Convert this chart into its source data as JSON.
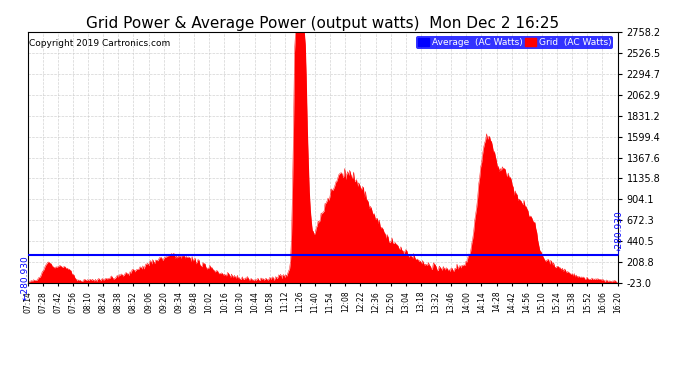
{
  "title": "Grid Power & Average Power (output watts)  Mon Dec 2 16:25",
  "copyright": "Copyright 2019 Cartronics.com",
  "legend_avg": "Average  (AC Watts)",
  "legend_grid": "Grid  (AC Watts)",
  "avg_line_value": 280.93,
  "avg_label": "280.930",
  "ymin": -23.0,
  "ymax": 2758.2,
  "yticks": [
    2758.2,
    2526.5,
    2294.7,
    2062.9,
    1831.2,
    1599.4,
    1367.6,
    1135.8,
    904.1,
    672.3,
    440.5,
    208.8,
    -23.0
  ],
  "background_color": "#ffffff",
  "grid_color": "#c8c8c8",
  "fill_color": "#ff0000",
  "line_color": "#0000ff",
  "title_fontsize": 11,
  "xtick_labels": [
    "07:14",
    "07:28",
    "07:42",
    "07:56",
    "08:10",
    "08:24",
    "08:38",
    "08:52",
    "09:06",
    "09:20",
    "09:34",
    "09:48",
    "10:02",
    "10:16",
    "10:30",
    "10:44",
    "10:58",
    "11:12",
    "11:26",
    "11:40",
    "11:54",
    "12:08",
    "12:22",
    "12:36",
    "12:50",
    "13:04",
    "13:18",
    "13:32",
    "13:46",
    "14:00",
    "14:14",
    "14:28",
    "14:42",
    "14:56",
    "15:10",
    "15:24",
    "15:38",
    "15:52",
    "16:06",
    "16:20"
  ]
}
